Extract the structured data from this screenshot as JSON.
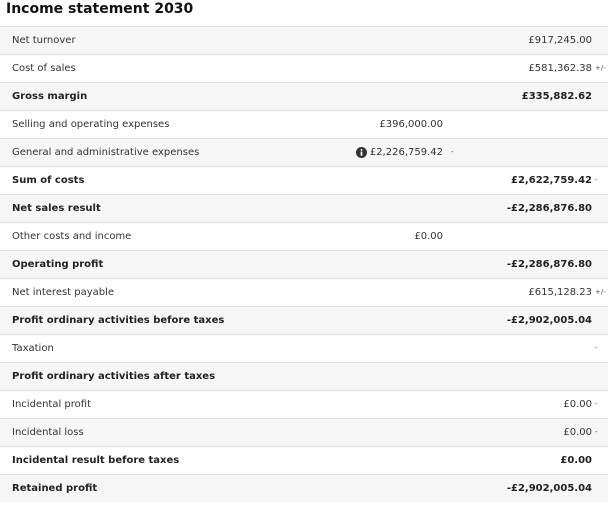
{
  "title": "Income statement 2030",
  "rows": [
    {
      "label": "Net turnover",
      "right": "£917,245.00"
    },
    {
      "label": "Cost of sales",
      "right": "£581,362.38",
      "suffix": "+/-",
      "rule": "right"
    },
    {
      "label": "Gross margin",
      "right": "£335,882.62",
      "bold": true
    },
    {
      "label": "Selling and operating expenses",
      "middle": "£396,000.00"
    },
    {
      "label": "General and administrative expenses",
      "middle": "£2,226,759.42",
      "middle_suffix": "-",
      "info": true,
      "rule": "middle"
    },
    {
      "label": "Sum of costs",
      "right": "£2,622,759.42",
      "suffix": "-",
      "bold": true
    },
    {
      "label": "Net sales result",
      "right": "-£2,286,876.80",
      "bold": true
    },
    {
      "label": "Other costs and income",
      "middle": "£0.00"
    },
    {
      "label": "Operating profit",
      "right": "-£2,286,876.80",
      "bold": true
    },
    {
      "label": "Net interest payable",
      "right": "£615,128.23",
      "suffix": "+/-",
      "rule": "right"
    },
    {
      "label": "Profit ordinary activities before taxes",
      "right": "-£2,902,005.04",
      "bold": true
    },
    {
      "label": "Taxation",
      "suffix": "-",
      "rule": "right"
    },
    {
      "label": "Profit ordinary activities after taxes",
      "bold": true
    },
    {
      "label": "Incidental profit",
      "right": "£0.00",
      "suffix": "-"
    },
    {
      "label": "Incidental loss",
      "right": "£0.00",
      "suffix": "-",
      "rule": "right"
    },
    {
      "label": "Incidental result before taxes",
      "right": "£0.00",
      "bold": true
    },
    {
      "label": "Retained profit",
      "right": "-£2,902,005.04",
      "bold": true
    }
  ]
}
